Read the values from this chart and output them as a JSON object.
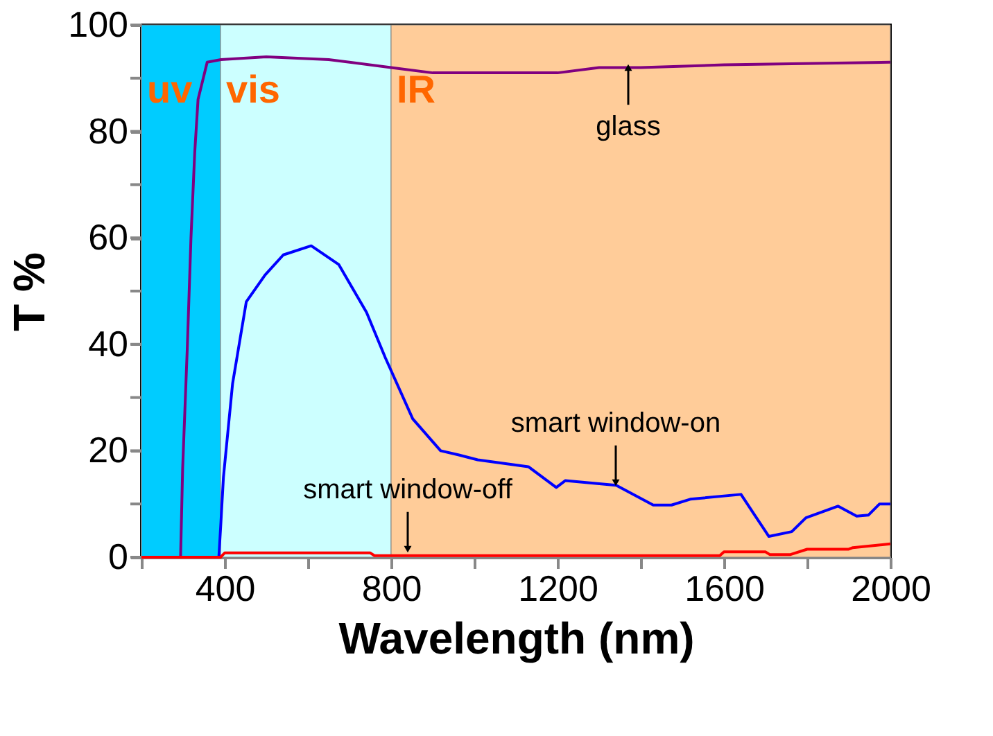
{
  "chart_data": {
    "type": "line",
    "xlabel": "Wavelength (nm)",
    "ylabel": "T %",
    "xlim": [
      200,
      2000
    ],
    "ylim": [
      0,
      100
    ],
    "xticks": [
      {
        "value": 200,
        "label": null
      },
      400,
      {
        "value": 600,
        "label": null
      },
      800,
      {
        "value": 1000,
        "label": null
      },
      1200,
      {
        "value": 1400,
        "label": null
      },
      1600,
      {
        "value": 1800,
        "label": null
      },
      2000
    ],
    "yticks": [
      0,
      {
        "value": 10,
        "label": null
      },
      20,
      {
        "value": 30,
        "label": null
      },
      40,
      {
        "value": 50,
        "label": null
      },
      60,
      {
        "value": 70,
        "label": null
      },
      80,
      {
        "value": 90,
        "label": null
      },
      100
    ],
    "grid": false,
    "marker": "none",
    "line_style": "solid",
    "bands": [
      {
        "axis": "x",
        "from": 200,
        "to": 390,
        "label": "uv",
        "color": "#00ccff"
      },
      {
        "axis": "x",
        "from": 390,
        "to": 800,
        "label": "vis",
        "color": "#ccffff"
      },
      {
        "axis": "x",
        "from": 800,
        "to": 2000,
        "label": "IR",
        "color": "#ffcc99"
      }
    ],
    "series": [
      {
        "color": "#800080",
        "x": [
          200,
          280,
          294,
          299,
          310,
          319,
          328,
          336,
          358,
          391,
          500,
          650,
          800,
          900,
          1200,
          1300,
          1400,
          1600,
          2000
        ],
        "values": [
          0,
          0,
          0,
          16.7,
          39,
          60,
          76,
          86,
          93,
          93.5,
          94,
          93.5,
          92,
          91,
          91,
          92,
          92,
          92.5,
          93
        ]
      },
      {
        "color": "#0000ff",
        "x": [
          200,
          386,
          391,
          397,
          419,
          452,
          497,
          541,
          608,
          674,
          741,
          786,
          852,
          919,
          963,
          1008,
          1130,
          1197,
          1219,
          1341,
          1430,
          1474,
          1519,
          1641,
          1674,
          1708,
          1763,
          1797,
          1874,
          1919,
          1947,
          1974,
          2000
        ],
        "values": [
          0,
          0,
          6.6,
          15,
          32.6,
          48,
          53,
          56.8,
          58.5,
          55,
          46,
          37.5,
          26,
          20,
          19.2,
          18.3,
          17,
          13.1,
          14.4,
          13.5,
          9.8,
          9.8,
          10.9,
          11.8,
          7.9,
          3.9,
          4.8,
          7.4,
          9.6,
          7.7,
          7.9,
          10,
          10
        ]
      },
      {
        "color": "#ff0000",
        "x": [
          200,
          390,
          400,
          750,
          760,
          1590,
          1600,
          1700,
          1710,
          1760,
          1800,
          1900,
          1910,
          2000
        ],
        "values": [
          0,
          0,
          0.8,
          0.8,
          0.3,
          0.3,
          1,
          1,
          0.5,
          0.5,
          1.5,
          1.5,
          1.8,
          2.5
        ]
      }
    ],
    "annotations": [
      {
        "text": "glass",
        "x": 1370,
        "y": 92
      },
      {
        "text": "smart window-on",
        "x": 1340,
        "y": 14
      },
      {
        "text": "smart window-off",
        "x": 840,
        "y": 1.5
      }
    ]
  }
}
